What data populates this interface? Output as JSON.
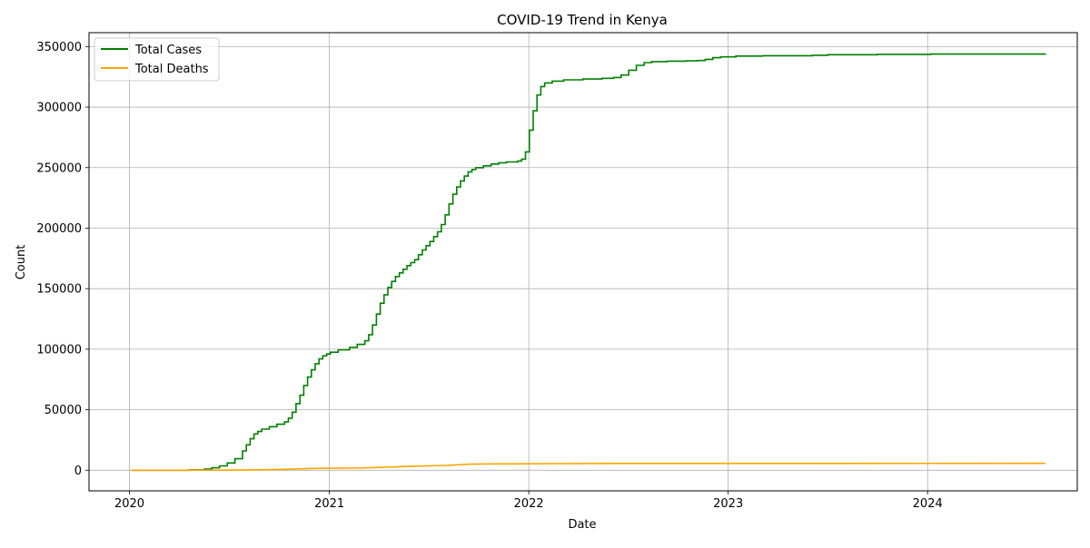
{
  "chart_data": {
    "type": "line",
    "title": "COVID-19 Trend in Kenya",
    "xlabel": "Date",
    "ylabel": "Count",
    "xlim": [
      "2019-10-19",
      "2024-10-01"
    ],
    "ylim": [
      -17000,
      361500
    ],
    "x_ticks": [
      {
        "date": "2020-01-01",
        "label": "2020"
      },
      {
        "date": "2021-01-01",
        "label": "2021"
      },
      {
        "date": "2022-01-01",
        "label": "2022"
      },
      {
        "date": "2023-01-01",
        "label": "2023"
      },
      {
        "date": "2024-01-01",
        "label": "2024"
      }
    ],
    "y_ticks": [
      0,
      50000,
      100000,
      150000,
      200000,
      250000,
      300000,
      350000
    ],
    "y_tick_labels": [
      "0",
      "50000",
      "100000",
      "150000",
      "200000",
      "250000",
      "300000",
      "350000"
    ],
    "grid": true,
    "legend_position": "top-left",
    "series": [
      {
        "name": "Total Cases",
        "color": "#008000",
        "step": true,
        "points": [
          [
            "2020-01-05",
            0
          ],
          [
            "2020-03-15",
            0
          ],
          [
            "2020-04-19",
            300
          ],
          [
            "2020-05-17",
            900
          ],
          [
            "2020-05-31",
            2000
          ],
          [
            "2020-06-14",
            3600
          ],
          [
            "2020-06-28",
            6000
          ],
          [
            "2020-07-12",
            9500
          ],
          [
            "2020-07-26",
            16000
          ],
          [
            "2020-08-02",
            21000
          ],
          [
            "2020-08-09",
            26000
          ],
          [
            "2020-08-16",
            30000
          ],
          [
            "2020-08-23",
            32000
          ],
          [
            "2020-08-30",
            34000
          ],
          [
            "2020-09-13",
            36000
          ],
          [
            "2020-09-27",
            38000
          ],
          [
            "2020-10-11",
            40000
          ],
          [
            "2020-10-18",
            43000
          ],
          [
            "2020-10-25",
            48000
          ],
          [
            "2020-11-01",
            55000
          ],
          [
            "2020-11-08",
            62000
          ],
          [
            "2020-11-15",
            70000
          ],
          [
            "2020-11-22",
            77000
          ],
          [
            "2020-11-29",
            83000
          ],
          [
            "2020-12-06",
            88000
          ],
          [
            "2020-12-13",
            92000
          ],
          [
            "2020-12-20",
            94500
          ],
          [
            "2020-12-27",
            96000
          ],
          [
            "2021-01-03",
            97500
          ],
          [
            "2021-01-17",
            99500
          ],
          [
            "2021-02-07",
            101500
          ],
          [
            "2021-02-21",
            104000
          ],
          [
            "2021-03-07",
            107000
          ],
          [
            "2021-03-14",
            112000
          ],
          [
            "2021-03-21",
            120000
          ],
          [
            "2021-03-28",
            129000
          ],
          [
            "2021-04-04",
            138000
          ],
          [
            "2021-04-11",
            145000
          ],
          [
            "2021-04-18",
            151000
          ],
          [
            "2021-04-25",
            156000
          ],
          [
            "2021-05-02",
            160000
          ],
          [
            "2021-05-09",
            163000
          ],
          [
            "2021-05-16",
            166000
          ],
          [
            "2021-05-23",
            169000
          ],
          [
            "2021-05-30",
            171500
          ],
          [
            "2021-06-06",
            174000
          ],
          [
            "2021-06-13",
            178000
          ],
          [
            "2021-06-20",
            182000
          ],
          [
            "2021-06-27",
            185500
          ],
          [
            "2021-07-04",
            189000
          ],
          [
            "2021-07-11",
            193000
          ],
          [
            "2021-07-18",
            197000
          ],
          [
            "2021-07-25",
            203000
          ],
          [
            "2021-08-01",
            211000
          ],
          [
            "2021-08-08",
            220000
          ],
          [
            "2021-08-15",
            228000
          ],
          [
            "2021-08-22",
            234000
          ],
          [
            "2021-08-29",
            239000
          ],
          [
            "2021-09-05",
            243000
          ],
          [
            "2021-09-12",
            246500
          ],
          [
            "2021-09-19",
            248500
          ],
          [
            "2021-09-26",
            250000
          ],
          [
            "2021-10-10",
            251500
          ],
          [
            "2021-10-24",
            253000
          ],
          [
            "2021-11-07",
            254000
          ],
          [
            "2021-11-21",
            254700
          ],
          [
            "2021-12-12",
            255500
          ],
          [
            "2021-12-19",
            257000
          ],
          [
            "2021-12-26",
            263000
          ],
          [
            "2022-01-02",
            281000
          ],
          [
            "2022-01-09",
            297000
          ],
          [
            "2022-01-16",
            310000
          ],
          [
            "2022-01-23",
            317000
          ],
          [
            "2022-01-30",
            320000
          ],
          [
            "2022-02-13",
            321500
          ],
          [
            "2022-03-06",
            322500
          ],
          [
            "2022-04-10",
            323200
          ],
          [
            "2022-05-15",
            323800
          ],
          [
            "2022-06-05",
            324500
          ],
          [
            "2022-06-19",
            326500
          ],
          [
            "2022-07-03",
            330500
          ],
          [
            "2022-07-17",
            334500
          ],
          [
            "2022-07-31",
            336800
          ],
          [
            "2022-08-14",
            337600
          ],
          [
            "2022-09-11",
            338000
          ],
          [
            "2022-10-16",
            338200
          ],
          [
            "2022-11-06",
            338500
          ],
          [
            "2022-11-20",
            339500
          ],
          [
            "2022-12-04",
            340800
          ],
          [
            "2022-12-18",
            341500
          ],
          [
            "2023-01-15",
            342200
          ],
          [
            "2023-03-05",
            342500
          ],
          [
            "2023-06-04",
            342800
          ],
          [
            "2023-07-02",
            343300
          ],
          [
            "2023-10-01",
            343600
          ],
          [
            "2024-01-07",
            343800
          ],
          [
            "2024-08-04",
            343900
          ]
        ]
      },
      {
        "name": "Total Deaths",
        "color": "#ffa500",
        "step": false,
        "points": [
          [
            "2020-01-05",
            0
          ],
          [
            "2020-04-01",
            0
          ],
          [
            "2020-06-01",
            100
          ],
          [
            "2020-08-01",
            300
          ],
          [
            "2020-10-01",
            700
          ],
          [
            "2020-12-01",
            1500
          ],
          [
            "2021-01-01",
            1700
          ],
          [
            "2021-03-01",
            1900
          ],
          [
            "2021-04-01",
            2300
          ],
          [
            "2021-06-01",
            3300
          ],
          [
            "2021-08-01",
            4000
          ],
          [
            "2021-09-15",
            5000
          ],
          [
            "2021-11-01",
            5250
          ],
          [
            "2022-01-01",
            5300
          ],
          [
            "2022-03-01",
            5450
          ],
          [
            "2022-07-01",
            5600
          ],
          [
            "2023-01-01",
            5650
          ],
          [
            "2024-08-04",
            5700
          ]
        ]
      }
    ]
  }
}
